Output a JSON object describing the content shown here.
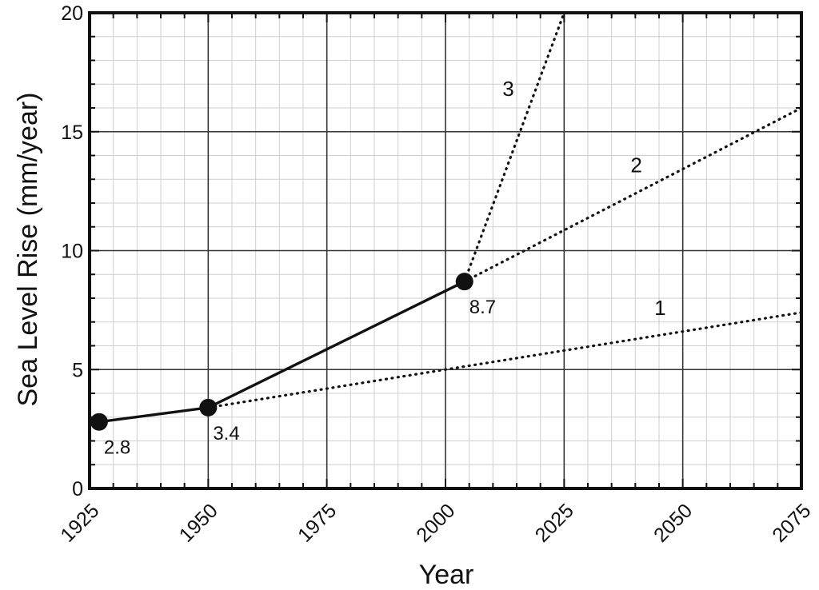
{
  "chart_data": {
    "type": "line",
    "title": "",
    "xlabel": "Year",
    "ylabel": "Sea Level Rise (mm/year)",
    "xlim": [
      1925,
      2075
    ],
    "ylim": [
      0,
      20
    ],
    "x_ticks": [
      "1925",
      "1950",
      "1975",
      "2000",
      "2025",
      "2050",
      "2075"
    ],
    "y_ticks": [
      "0",
      "5",
      "10",
      "15",
      "20"
    ],
    "grid": true,
    "colors": {
      "line": "#111111",
      "grid_major": "#333333",
      "grid_minor": "#cfcfcf"
    },
    "observed": {
      "points": [
        {
          "x": 1927,
          "y": 2.8,
          "label": "2.8"
        },
        {
          "x": 1950,
          "y": 3.4,
          "label": "3.4"
        },
        {
          "x": 2004,
          "y": 8.7,
          "label": "8.7"
        }
      ]
    },
    "projections": [
      {
        "name": "1",
        "style": "dotted",
        "points": [
          {
            "x": 1950,
            "y": 3.4
          },
          {
            "x": 2075,
            "y": 7.4
          }
        ]
      },
      {
        "name": "2",
        "style": "dotted",
        "points": [
          {
            "x": 2004,
            "y": 8.7
          },
          {
            "x": 2075,
            "y": 16.0
          }
        ]
      },
      {
        "name": "3",
        "style": "dotted",
        "points": [
          {
            "x": 2004,
            "y": 8.7
          },
          {
            "x": 2025,
            "y": 20.0
          }
        ]
      }
    ]
  }
}
